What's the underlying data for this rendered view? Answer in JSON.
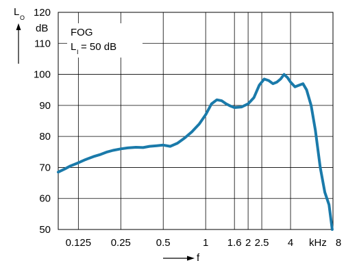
{
  "chart_data": {
    "type": "line",
    "x_scale": "log2",
    "xlim": [
      0.09,
      8
    ],
    "ylim": [
      50,
      120
    ],
    "grid": true,
    "x_ticks": [
      {
        "value": 0.125,
        "label": "0.125"
      },
      {
        "value": 0.25,
        "label": "0.25"
      },
      {
        "value": 0.5,
        "label": "0.5"
      },
      {
        "value": 1,
        "label": "1"
      },
      {
        "value": 1.6,
        "label": "1.6"
      },
      {
        "value": 2,
        "label": "2"
      },
      {
        "value": 2.5,
        "label": "2.5"
      },
      {
        "value": 4,
        "label": "4"
      },
      {
        "value": 8,
        "label": "8"
      }
    ],
    "x_unit_label": "kHz",
    "y_ticks": [
      50,
      60,
      70,
      80,
      90,
      100,
      110,
      120
    ],
    "y_unit_label": "dB",
    "xlabel": "f",
    "ylabel_main": "L",
    "ylabel_sub": "O",
    "annotation": {
      "line1": "FOG",
      "line2_main": "L",
      "line2_sub": "I",
      "line2_rest": "= 50 dB"
    },
    "series_color": "#1a7aaa",
    "series": [
      {
        "x": [
          0.09,
          0.1,
          0.11,
          0.125,
          0.14,
          0.16,
          0.18,
          0.2,
          0.22,
          0.25,
          0.28,
          0.32,
          0.36,
          0.4,
          0.45,
          0.5,
          0.56,
          0.63,
          0.71,
          0.8,
          0.9,
          1.0,
          1.1,
          1.2,
          1.3,
          1.4,
          1.5,
          1.6,
          1.8,
          2.0,
          2.2,
          2.4,
          2.6,
          2.8,
          3.0,
          3.2,
          3.4,
          3.6,
          3.8,
          4.0,
          4.3,
          4.6,
          4.9,
          5.2,
          5.6,
          6.0,
          6.5,
          7.0,
          7.5,
          7.9
        ],
        "y": [
          68.5,
          69.5,
          70.5,
          71.5,
          72.5,
          73.5,
          74.2,
          75.0,
          75.5,
          76.0,
          76.3,
          76.5,
          76.4,
          76.8,
          77.0,
          77.2,
          76.8,
          77.8,
          79.5,
          81.5,
          84.0,
          87.0,
          90.5,
          91.8,
          91.5,
          90.5,
          89.8,
          89.3,
          89.5,
          90.5,
          92.5,
          96.5,
          98.5,
          98.0,
          97.0,
          97.5,
          98.5,
          100.0,
          99.0,
          97.5,
          96.0,
          96.5,
          97.0,
          95.0,
          90.0,
          82.0,
          70.0,
          62.0,
          58.0,
          50.0
        ]
      }
    ]
  }
}
